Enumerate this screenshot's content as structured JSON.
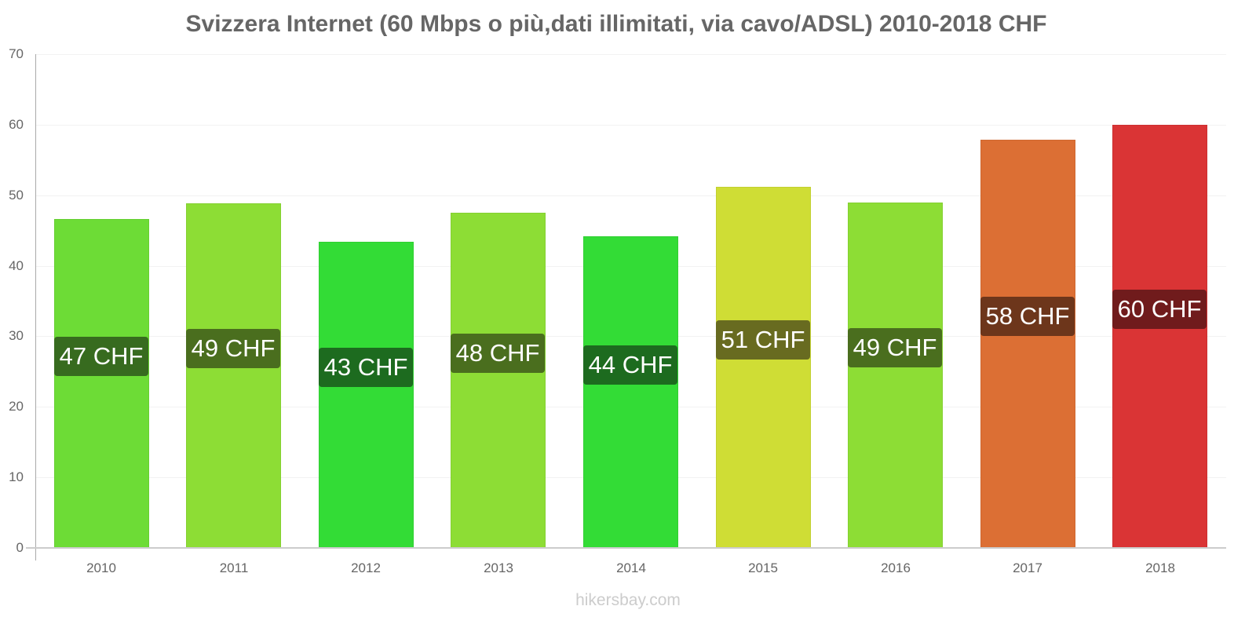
{
  "chart_data": {
    "type": "bar",
    "title": "Svizzera Internet (60 Mbps o più,dati illimitati, via cavo/ADSL) 2010-2018 CHF",
    "xlabel": "",
    "ylabel": "",
    "categories": [
      "2010",
      "2011",
      "2012",
      "2013",
      "2014",
      "2015",
      "2016",
      "2017",
      "2018"
    ],
    "values": [
      46.6,
      48.9,
      43.4,
      47.5,
      44.2,
      51.2,
      49.0,
      57.9,
      60.0
    ],
    "data_labels": [
      "47 CHF",
      "49 CHF",
      "43 CHF",
      "48 CHF",
      "44 CHF",
      "51 CHF",
      "49 CHF",
      "58 CHF",
      "60 CHF"
    ],
    "bar_colors": [
      "#6ddc36",
      "#8ddd35",
      "#33dc36",
      "#8ddd35",
      "#33dc36",
      "#cfdd35",
      "#8ddd35",
      "#dc6f34",
      "#da3435"
    ],
    "label_colors": [
      "#376b1f",
      "#4a6e1e",
      "#1d6b1f",
      "#4a6e1e",
      "#1d6b1f",
      "#686b20",
      "#4a6e1e",
      "#6d361b",
      "#701b1c"
    ],
    "yticks": [
      0,
      10,
      20,
      30,
      40,
      50,
      60,
      70
    ],
    "ylim": [
      0,
      70
    ],
    "grid": true,
    "legend": null,
    "watermark": "hikersbay.com"
  }
}
